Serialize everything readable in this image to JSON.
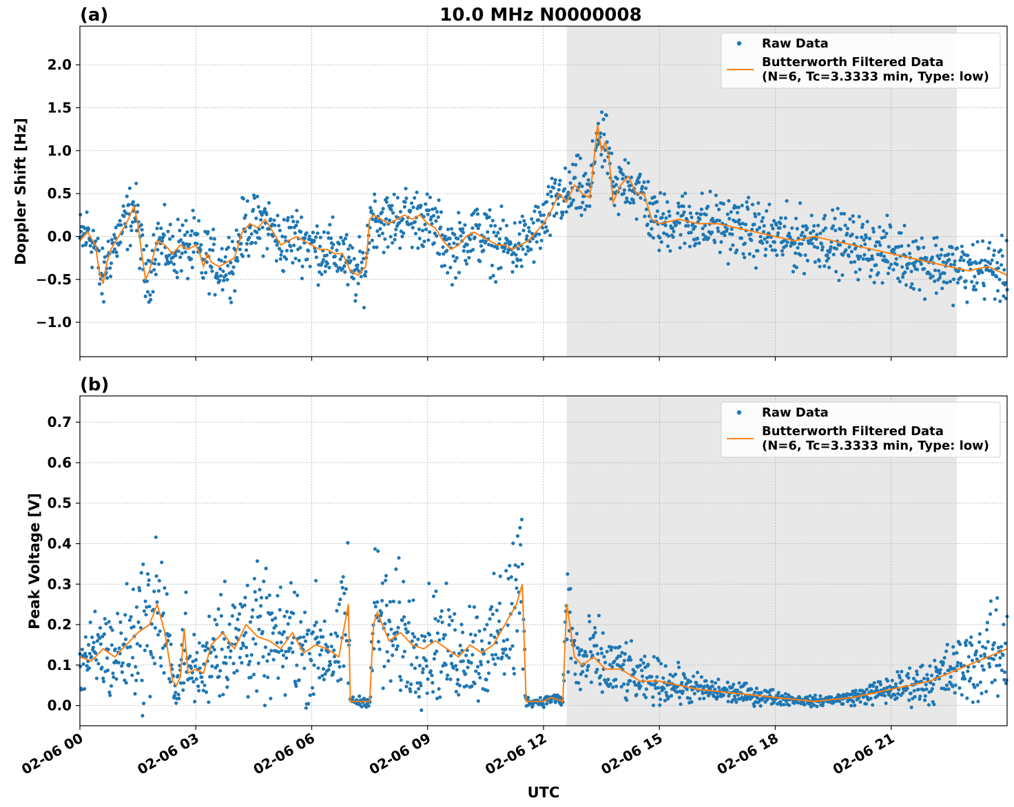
{
  "figure": {
    "title": "10.0 MHz N0000008",
    "xlabel": "UTC"
  },
  "colors": {
    "raw": "#1f77b4",
    "filtered": "#ff7f0e",
    "shade": "#e8e8e8",
    "grid": "#b0b0b0"
  },
  "chart_data": [
    {
      "type": "scatter",
      "panel_label": "(a)",
      "ylabel": "Doppler Shift [Hz]",
      "xlim_hours": [
        0,
        24
      ],
      "ylim": [
        -1.4,
        2.45
      ],
      "yticks": [
        2.0,
        1.5,
        1.0,
        0.5,
        0.0,
        -0.5,
        -1.0
      ],
      "ytick_labels": [
        "2.0",
        "1.5",
        "1.0",
        "0.5",
        "0.0",
        "−0.5",
        "−1.0"
      ],
      "xticks_hours": [
        0,
        3,
        6,
        9,
        12,
        15,
        18,
        21
      ],
      "shaded_interval_hours": [
        12.6,
        22.7
      ],
      "grid": true,
      "legend": {
        "placement": "upper-right",
        "raw_label": "Raw Data",
        "filtered_label_line1": "Butterworth Filtered Data",
        "filtered_label_line2": "(N=6, Tc=3.3333 min, Type: low)"
      },
      "series": [
        {
          "name": "Butterworth Filtered Data",
          "x_hours": [
            0.0,
            0.2,
            0.4,
            0.5,
            0.6,
            0.7,
            0.8,
            1.0,
            1.2,
            1.4,
            1.5,
            1.6,
            1.7,
            1.8,
            2.0,
            2.2,
            2.4,
            2.5,
            2.6,
            2.8,
            3.0,
            3.1,
            3.2,
            3.3,
            3.4,
            3.6,
            3.8,
            4.0,
            4.2,
            4.4,
            4.6,
            4.8,
            5.0,
            5.2,
            5.4,
            5.6,
            5.8,
            6.0,
            6.2,
            6.4,
            6.6,
            6.8,
            7.0,
            7.2,
            7.4,
            7.5,
            7.6,
            7.8,
            8.0,
            8.2,
            8.4,
            8.6,
            8.8,
            9.0,
            9.2,
            9.4,
            9.6,
            9.8,
            10.0,
            10.2,
            10.4,
            10.6,
            10.8,
            11.0,
            11.2,
            11.4,
            11.6,
            11.8,
            12.0,
            12.2,
            12.4,
            12.6,
            12.8,
            13.0,
            13.2,
            13.4,
            13.5,
            13.6,
            13.7,
            13.8,
            14.0,
            14.2,
            14.4,
            14.6,
            14.8,
            15.0,
            15.5,
            16.0,
            16.5,
            17.0,
            17.5,
            18.0,
            18.5,
            19.0,
            19.5,
            20.0,
            20.5,
            21.0,
            21.5,
            22.0,
            22.5,
            23.0,
            23.5,
            24.0
          ],
          "y": [
            -0.05,
            0.05,
            -0.1,
            -0.4,
            -0.55,
            -0.3,
            -0.15,
            0.0,
            0.15,
            0.35,
            0.15,
            -0.2,
            -0.5,
            -0.4,
            -0.05,
            -0.1,
            -0.2,
            -0.15,
            -0.1,
            -0.15,
            -0.1,
            -0.2,
            -0.35,
            -0.2,
            -0.3,
            -0.35,
            -0.3,
            -0.25,
            0.05,
            0.15,
            0.1,
            0.2,
            0.05,
            -0.1,
            -0.05,
            0.0,
            -0.05,
            -0.1,
            -0.15,
            -0.15,
            -0.2,
            -0.2,
            -0.4,
            -0.45,
            -0.35,
            0.2,
            0.25,
            0.2,
            0.15,
            0.2,
            0.25,
            0.2,
            0.25,
            0.15,
            0.1,
            -0.05,
            -0.15,
            -0.1,
            0.0,
            0.05,
            0.0,
            -0.05,
            -0.1,
            -0.1,
            -0.15,
            -0.1,
            -0.05,
            0.05,
            0.15,
            0.3,
            0.5,
            0.4,
            0.6,
            0.5,
            0.45,
            1.3,
            1.0,
            1.1,
            0.9,
            0.4,
            0.6,
            0.7,
            0.5,
            0.5,
            0.2,
            0.15,
            0.2,
            0.15,
            0.15,
            0.1,
            0.05,
            0.0,
            -0.05,
            0.0,
            -0.05,
            -0.1,
            -0.15,
            -0.2,
            -0.25,
            -0.3,
            -0.35,
            -0.4,
            -0.35,
            -0.45
          ]
        }
      ]
    },
    {
      "type": "scatter",
      "panel_label": "(b)",
      "ylabel": "Peak Voltage [V]",
      "xlim_hours": [
        0,
        24
      ],
      "ylim": [
        -0.05,
        0.765
      ],
      "yticks": [
        0.7,
        0.6,
        0.5,
        0.4,
        0.3,
        0.2,
        0.1,
        0.0
      ],
      "ytick_labels": [
        "0.7",
        "0.6",
        "0.5",
        "0.4",
        "0.3",
        "0.2",
        "0.1",
        "0.0"
      ],
      "xticks_hours": [
        0,
        3,
        6,
        9,
        12,
        15,
        18,
        21
      ],
      "xtick_labels": [
        "02-06 00",
        "02-06 03",
        "02-06 06",
        "02-06 09",
        "02-06 12",
        "02-06 15",
        "02-06 18",
        "02-06 21"
      ],
      "shaded_interval_hours": [
        12.6,
        22.7
      ],
      "grid": true,
      "legend": {
        "placement": "upper-right",
        "raw_label": "Raw Data",
        "filtered_label_line1": "Butterworth Filtered Data",
        "filtered_label_line2": "(N=6, Tc=3.3333 min, Type: low)"
      },
      "series": [
        {
          "name": "Butterworth Filtered Data",
          "x_hours": [
            0.0,
            0.3,
            0.6,
            0.9,
            1.2,
            1.5,
            1.8,
            2.0,
            2.2,
            2.4,
            2.5,
            2.6,
            2.7,
            2.8,
            3.0,
            3.2,
            3.4,
            3.7,
            4.0,
            4.3,
            4.6,
            4.9,
            5.2,
            5.5,
            5.8,
            6.1,
            6.4,
            6.7,
            6.95,
            7.0,
            7.1,
            7.5,
            7.6,
            7.7,
            8.0,
            8.3,
            8.6,
            8.9,
            9.2,
            9.5,
            9.8,
            10.1,
            10.4,
            10.7,
            11.0,
            11.3,
            11.45,
            11.55,
            11.6,
            11.8,
            12.0,
            12.2,
            12.5,
            12.6,
            12.65,
            12.8,
            13.0,
            13.3,
            13.6,
            14.0,
            14.5,
            15.0,
            15.5,
            16.0,
            16.5,
            17.0,
            17.5,
            18.0,
            18.5,
            19.0,
            19.5,
            20.0,
            20.5,
            21.0,
            21.5,
            22.0,
            22.5,
            23.0,
            23.5,
            24.0
          ],
          "y": [
            0.12,
            0.11,
            0.14,
            0.12,
            0.15,
            0.18,
            0.2,
            0.25,
            0.18,
            0.06,
            0.05,
            0.07,
            0.19,
            0.08,
            0.09,
            0.08,
            0.15,
            0.18,
            0.14,
            0.2,
            0.17,
            0.16,
            0.14,
            0.18,
            0.13,
            0.15,
            0.14,
            0.12,
            0.25,
            0.01,
            0.01,
            0.01,
            0.2,
            0.23,
            0.16,
            0.18,
            0.15,
            0.14,
            0.16,
            0.14,
            0.12,
            0.15,
            0.13,
            0.15,
            0.2,
            0.25,
            0.3,
            0.01,
            0.01,
            0.01,
            0.01,
            0.02,
            0.01,
            0.25,
            0.22,
            0.12,
            0.1,
            0.12,
            0.09,
            0.09,
            0.06,
            0.06,
            0.05,
            0.04,
            0.035,
            0.03,
            0.025,
            0.02,
            0.015,
            0.01,
            0.015,
            0.02,
            0.03,
            0.04,
            0.05,
            0.06,
            0.08,
            0.1,
            0.12,
            0.14
          ]
        }
      ]
    }
  ]
}
